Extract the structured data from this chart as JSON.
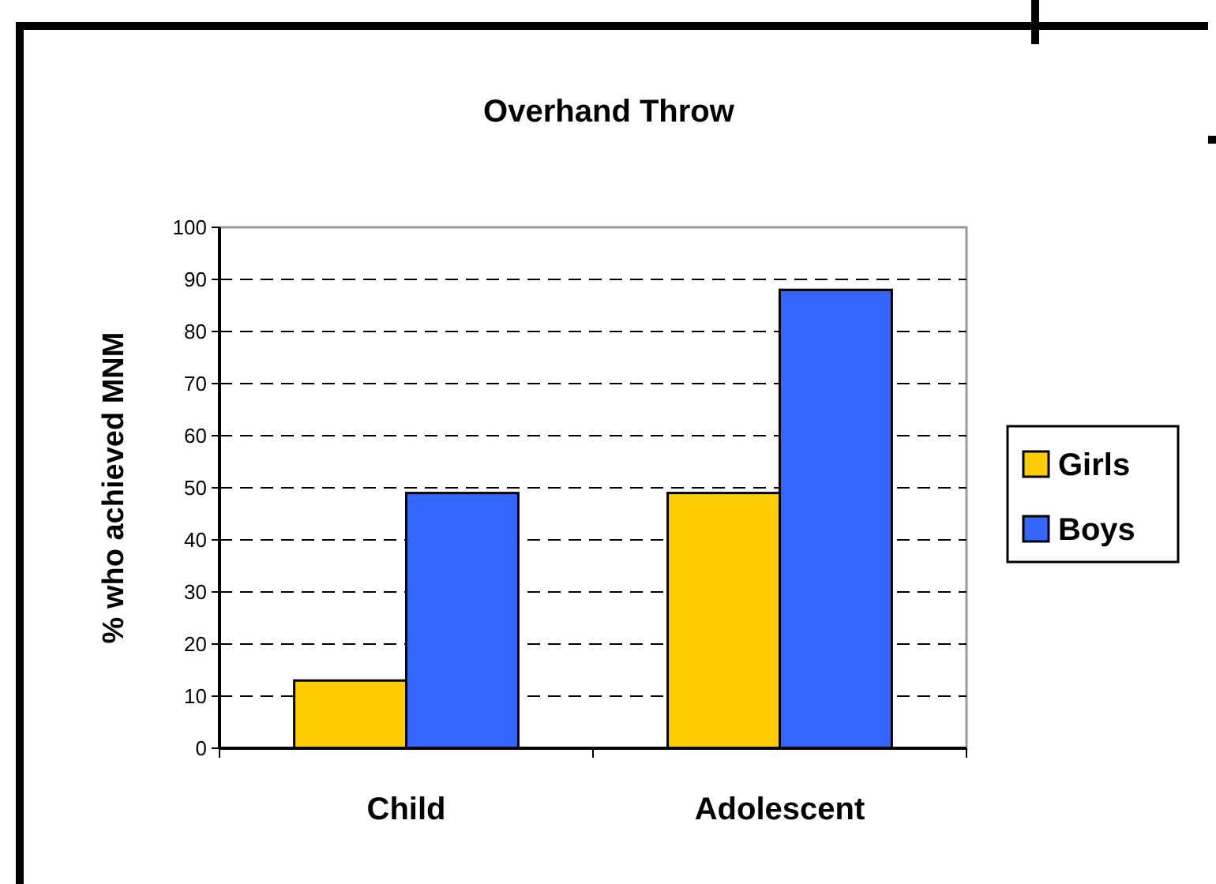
{
  "chart_data": {
    "type": "bar",
    "title": "Overhand Throw",
    "ylabel": "% who achieved MNM",
    "categories": [
      "Child",
      "Adolescent"
    ],
    "series": [
      {
        "name": "Girls",
        "color": "#ffcc00",
        "values": [
          13,
          49
        ]
      },
      {
        "name": "Boys",
        "color": "#3366ff",
        "values": [
          49,
          88
        ]
      }
    ],
    "ylim": [
      0,
      100
    ],
    "yticks": [
      0,
      10,
      20,
      30,
      40,
      50,
      60,
      70,
      80,
      90,
      100
    ],
    "grid": "y",
    "legend": "right"
  }
}
